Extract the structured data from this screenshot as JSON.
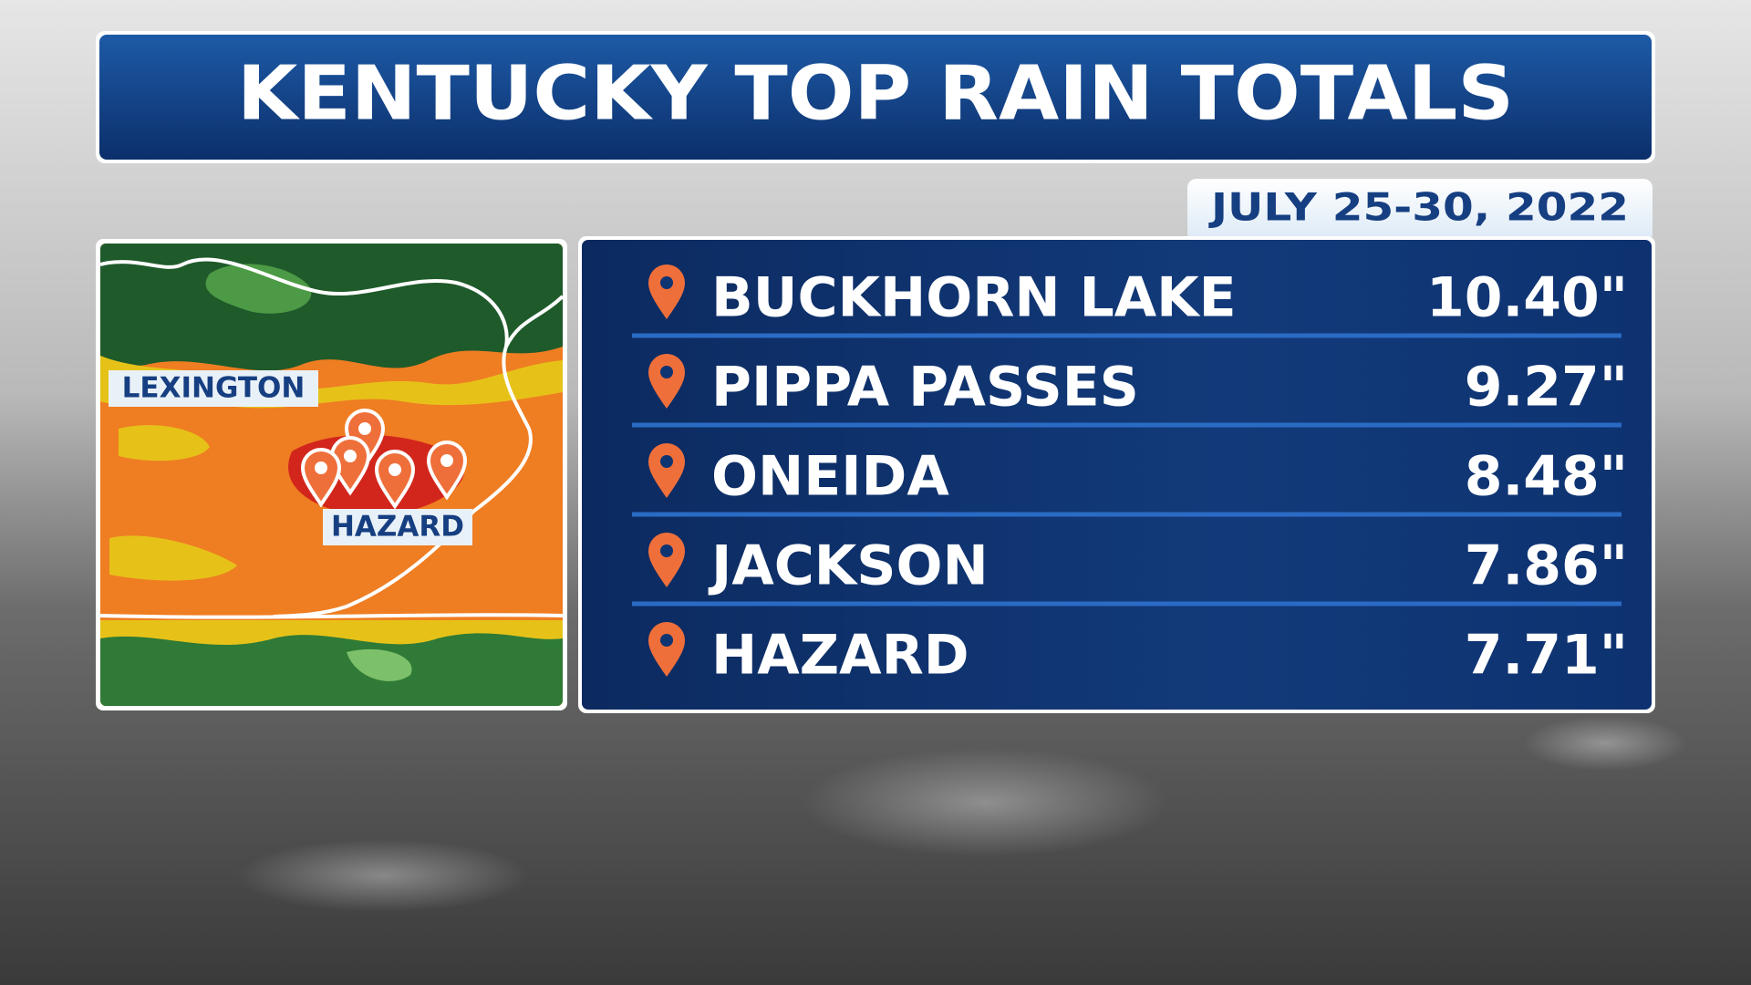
{
  "header": {
    "title": "KENTUCKY TOP RAIN TOTALS",
    "date": "JULY 25-30, 2022"
  },
  "map": {
    "labels": [
      "LEXINGTON",
      "HAZARD"
    ]
  },
  "table": {
    "rows": [
      [
        "BUCKHORN LAKE",
        "10.40\""
      ],
      [
        "PIPPA PASSES",
        "9.27\""
      ],
      [
        "ONEIDA",
        "8.48\""
      ],
      [
        "JACKSON",
        "7.86\""
      ],
      [
        "HAZARD",
        "7.71\""
      ]
    ]
  }
}
